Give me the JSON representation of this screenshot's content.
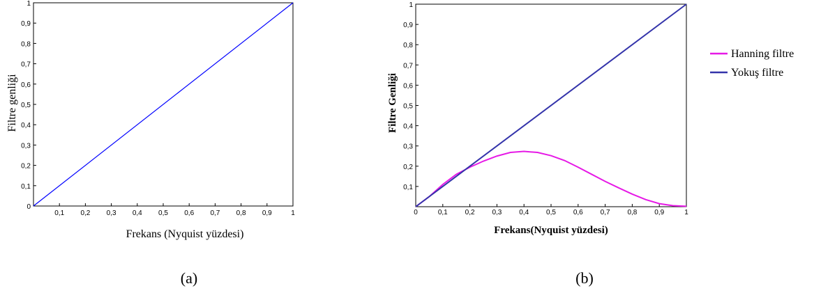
{
  "chart_data": [
    {
      "type": "line",
      "xlabel": "Frekans (Nyquist yüzdesi)",
      "ylabel": "Filtre genliği",
      "caption": "(a)",
      "xlim": [
        0,
        1
      ],
      "ylim": [
        0,
        1
      ],
      "x_ticks": [
        "0,1",
        "0,2",
        "0,3",
        "0,4",
        "0,5",
        "0,6",
        "0,7",
        "0,8",
        "0,9",
        "1"
      ],
      "y_ticks": [
        "0",
        "0,1",
        "0,2",
        "0,3",
        "0,4",
        "0,5",
        "0,6",
        "0,7",
        "0,8",
        "0,9",
        "1"
      ],
      "grid": false,
      "series": [
        {
          "color": "#0000ff",
          "x": [
            0,
            1
          ],
          "y": [
            0,
            1
          ]
        }
      ]
    },
    {
      "type": "line",
      "xlabel": "Frekans(Nyquist yüzdesi)",
      "ylabel": "Filtre Genliği",
      "caption": "(b)",
      "xlim": [
        0,
        1
      ],
      "ylim": [
        0,
        1
      ],
      "x_ticks": [
        "0",
        "0,1",
        "0,2",
        "0,3",
        "0,4",
        "0,5",
        "0,6",
        "0,7",
        "0,8",
        "0,9",
        "1"
      ],
      "y_ticks": [
        "0,1",
        "0,2",
        "0,3",
        "0,4",
        "0,5",
        "0,6",
        "0,7",
        "0,8",
        "0,9",
        "1"
      ],
      "grid": false,
      "legend_position": "right",
      "series": [
        {
          "name": "Hanning filtre",
          "color": "#e619e6",
          "x": [
            0,
            0.05,
            0.1,
            0.15,
            0.2,
            0.25,
            0.3,
            0.35,
            0.4,
            0.45,
            0.5,
            0.55,
            0.6,
            0.65,
            0.7,
            0.75,
            0.8,
            0.85,
            0.9,
            0.95,
            1
          ],
          "y": [
            0,
            0.05,
            0.11,
            0.16,
            0.195,
            0.225,
            0.25,
            0.268,
            0.273,
            0.268,
            0.252,
            0.228,
            0.195,
            0.16,
            0.125,
            0.093,
            0.062,
            0.035,
            0.015,
            0.005,
            0.002
          ]
        },
        {
          "name": "Yokuş filtre",
          "color": "#3333aa",
          "x": [
            0,
            1
          ],
          "y": [
            0,
            1
          ]
        }
      ]
    }
  ]
}
